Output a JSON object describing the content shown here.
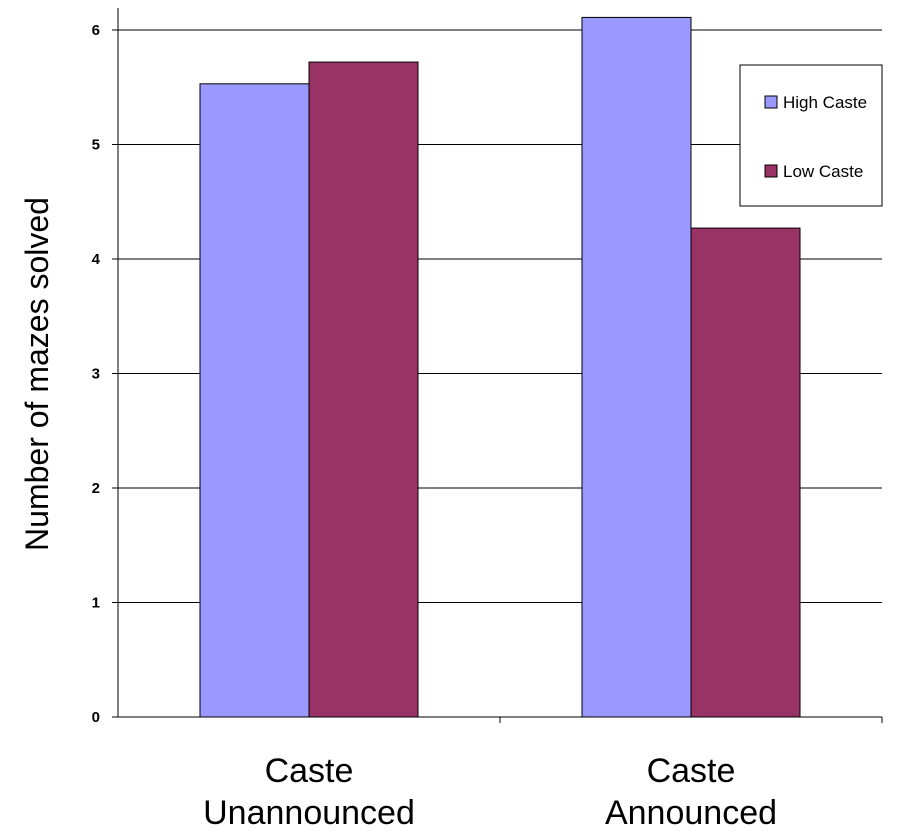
{
  "chart_data": {
    "type": "bar",
    "title": "",
    "xlabel": "",
    "ylabel": "Number of mazes solved",
    "categories": [
      "Caste Unannounced",
      "Caste Announced"
    ],
    "category_lines": [
      [
        "Caste",
        "Unannounced"
      ],
      [
        "Caste",
        "Announced"
      ]
    ],
    "series": [
      {
        "name": "High Caste",
        "color": "#9999ff",
        "values": [
          5.53,
          6.11
        ]
      },
      {
        "name": "Low Caste",
        "color": "#993366",
        "values": [
          5.72,
          4.27
        ]
      }
    ],
    "ylim": [
      0,
      6
    ],
    "yticks": [
      "0",
      "1",
      "2",
      "3",
      "4",
      "5",
      "6"
    ],
    "grid": true,
    "legend_position": "top-right"
  }
}
